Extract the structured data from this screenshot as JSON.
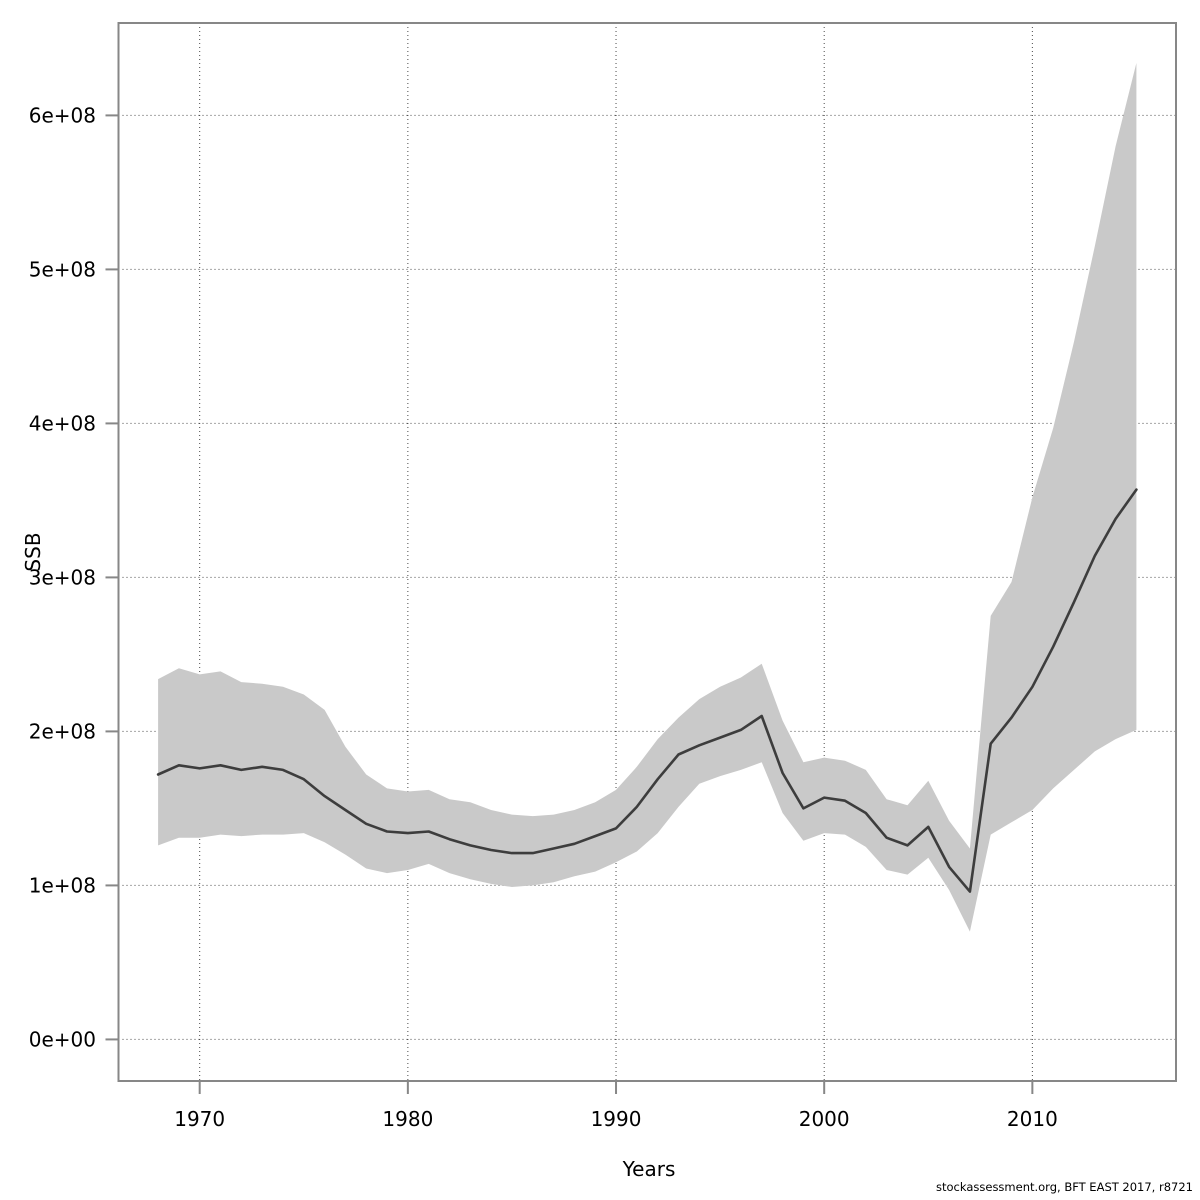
{
  "page": {
    "background_color": "#ffffff",
    "text_color": "#000000"
  },
  "footer": {
    "text": "stockassessment.org, BFT EAST 2017, r8721"
  },
  "chart_data": {
    "type": "line",
    "subtype": "line-with-confidence-band",
    "title": "",
    "xlabel": "Years",
    "ylabel": "SSB",
    "grid": "dotted",
    "legend": "none",
    "xlim": [
      1966.1,
      2016.9
    ],
    "ylim": [
      -27000000,
      660000000
    ],
    "x_ticks": {
      "values": [
        1970,
        1980,
        1990,
        2000,
        2010
      ],
      "labels": [
        "1970",
        "1980",
        "1990",
        "2000",
        "2010"
      ]
    },
    "y_ticks": {
      "values": [
        0,
        100000000.0,
        200000000.0,
        300000000.0,
        400000000.0,
        500000000.0,
        600000000.0
      ],
      "labels": [
        "0e+00",
        "1e+08",
        "2e+08",
        "3e+08",
        "4e+08",
        "5e+08",
        "6e+08"
      ]
    },
    "x": [
      1968,
      1969,
      1970,
      1971,
      1972,
      1973,
      1974,
      1975,
      1976,
      1977,
      1978,
      1979,
      1980,
      1981,
      1982,
      1983,
      1984,
      1985,
      1986,
      1987,
      1988,
      1989,
      1990,
      1991,
      1992,
      1993,
      1994,
      1995,
      1996,
      1997,
      1998,
      1999,
      2000,
      2001,
      2002,
      2003,
      2004,
      2005,
      2006,
      2007,
      2008,
      2009,
      2010,
      2011,
      2012,
      2013,
      2014,
      2015
    ],
    "series": [
      {
        "name": "median",
        "values": [
          172000000.0,
          178000000.0,
          176000000.0,
          178000000.0,
          175000000.0,
          177000000.0,
          175000000.0,
          169000000.0,
          158000000.0,
          149000000.0,
          140000000.0,
          135000000.0,
          134000000.0,
          135000000.0,
          130000000.0,
          126000000.0,
          123000000.0,
          121000000.0,
          121000000.0,
          124000000.0,
          127000000.0,
          132000000.0,
          137000000.0,
          151000000.0,
          169000000.0,
          185000000.0,
          191000000.0,
          196000000.0,
          201000000.0,
          210000000.0,
          173000000.0,
          150000000.0,
          157000000.0,
          155000000.0,
          147000000.0,
          131000000.0,
          126000000.0,
          138000000.0,
          112000000.0,
          96000000.0,
          192000000.0,
          209000000.0,
          229000000.0,
          255000000.0,
          284000000.0,
          314000000.0,
          338000000.0,
          357000000.0
        ]
      },
      {
        "name": "ci_lower",
        "values": [
          126000000.0,
          131000000.0,
          131000000.0,
          133000000.0,
          132000000.0,
          133000000.0,
          133000000.0,
          134000000.0,
          128000000.0,
          120000000.0,
          111000000.0,
          108000000.0,
          110000000.0,
          114000000.0,
          108000000.0,
          104000000.0,
          101000000.0,
          99000000.0,
          100000000.0,
          102000000.0,
          106000000.0,
          109000000.0,
          115000000.0,
          122000000.0,
          134000000.0,
          151000000.0,
          166000000.0,
          171000000.0,
          175000000.0,
          180000000.0,
          147000000.0,
          129000000.0,
          134000000.0,
          133000000.0,
          125000000.0,
          110000000.0,
          107000000.0,
          118000000.0,
          97000000.0,
          70000000.0,
          133000000.0,
          141000000.0,
          149000000.0,
          163000000.0,
          175000000.0,
          187000000.0,
          195000000.0,
          201000000.0
        ]
      },
      {
        "name": "ci_upper",
        "values": [
          234000000.0,
          241000000.0,
          237000000.0,
          239000000.0,
          232000000.0,
          231000000.0,
          229000000.0,
          224000000.0,
          214000000.0,
          190000000.0,
          172000000.0,
          163000000.0,
          161000000.0,
          162000000.0,
          156000000.0,
          154000000.0,
          149000000.0,
          146000000.0,
          145000000.0,
          146000000.0,
          149000000.0,
          154000000.0,
          162000000.0,
          177000000.0,
          195000000.0,
          209000000.0,
          221000000.0,
          229000000.0,
          235000000.0,
          244000000.0,
          207000000.0,
          180000000.0,
          183000000.0,
          181000000.0,
          175000000.0,
          156000000.0,
          152000000.0,
          168000000.0,
          142000000.0,
          124000000.0,
          275000000.0,
          297000000.0,
          352000000.0,
          397000000.0,
          453000000.0,
          515000000.0,
          580000000.0,
          634000000.0
        ]
      }
    ],
    "colors": {
      "band": "#c9c9c9",
      "median_line": "#3d3d3d",
      "border": "#878787",
      "grid": "#4a4a4a",
      "text": "#000000"
    }
  }
}
